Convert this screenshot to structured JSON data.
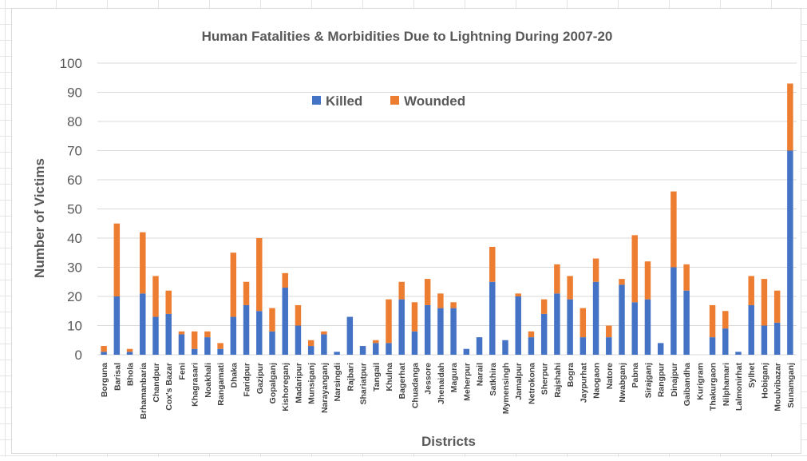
{
  "chart_data": {
    "type": "bar",
    "stacked": true,
    "title": "Human Fatalities & Morbidities Due to Lightning  During 2007-20",
    "xlabel": "Districts",
    "ylabel": "Number of Victims",
    "ylim": [
      0,
      100
    ],
    "yticks": [
      0,
      10,
      20,
      30,
      40,
      50,
      60,
      70,
      80,
      90,
      100
    ],
    "grid": true,
    "legend_position": "top-center",
    "categories": [
      "Borguna",
      "Barisal",
      "Bhola",
      "Brhamanbaria",
      "Chandpur",
      "Cox's Bazar",
      "Feni",
      "Khagrasari",
      "Noakhali",
      "Rangamati",
      "Dhaka",
      "Faridpur",
      "Gazipur",
      "Gopalganj",
      "Kishoreganj",
      "Madaripur",
      "Munsiganj",
      "Narayanganj",
      "Narsingdi",
      "Rajbari",
      "Shariatpur",
      "Tangail",
      "Khulna",
      "Bagerhat",
      "Chuadanga",
      "Jessore",
      "Jhenaidah",
      "Magura",
      "Meherpur",
      "Narail",
      "Satkhira",
      "Mymensingh",
      "Jamalpur",
      "Netrokona",
      "Sherpur",
      "Rajshahi",
      "Bogra",
      "Jaypurhat",
      "Naogaon",
      "Natore",
      "Nwabganj",
      "Pabna",
      "Sirajganj",
      "Rangpur",
      "Dinajpur",
      "Gaibandha",
      "Kurigram",
      "Thakurgaon",
      "Nilphamari",
      "Lalmonirhat",
      "Sylhet",
      "Hobiganj",
      "Moulvibazar",
      "Sunamganj"
    ],
    "series": [
      {
        "name": "Killed",
        "color": "#4472c4",
        "values": [
          1,
          20,
          1,
          21,
          13,
          14,
          7,
          2,
          6,
          2,
          13,
          17,
          15,
          8,
          23,
          10,
          3,
          7,
          1,
          13,
          3,
          4,
          4,
          19,
          8,
          17,
          16,
          16,
          2,
          6,
          25,
          5,
          20,
          6,
          14,
          21,
          19,
          6,
          25,
          6,
          24,
          18,
          19,
          4,
          30,
          22,
          0,
          6,
          9,
          1,
          17,
          10,
          11,
          70
        ]
      },
      {
        "name": "Wounded",
        "color": "#ed7d31",
        "values": [
          2,
          25,
          1,
          21,
          14,
          8,
          1,
          6,
          2,
          2,
          22,
          8,
          25,
          8,
          5,
          7,
          2,
          1,
          0,
          0,
          0,
          1,
          15,
          6,
          10,
          9,
          5,
          2,
          0,
          0,
          12,
          0,
          1,
          2,
          5,
          10,
          8,
          10,
          8,
          4,
          2,
          23,
          13,
          0,
          26,
          9,
          0,
          11,
          6,
          0,
          10,
          16,
          11,
          23
        ]
      }
    ]
  }
}
